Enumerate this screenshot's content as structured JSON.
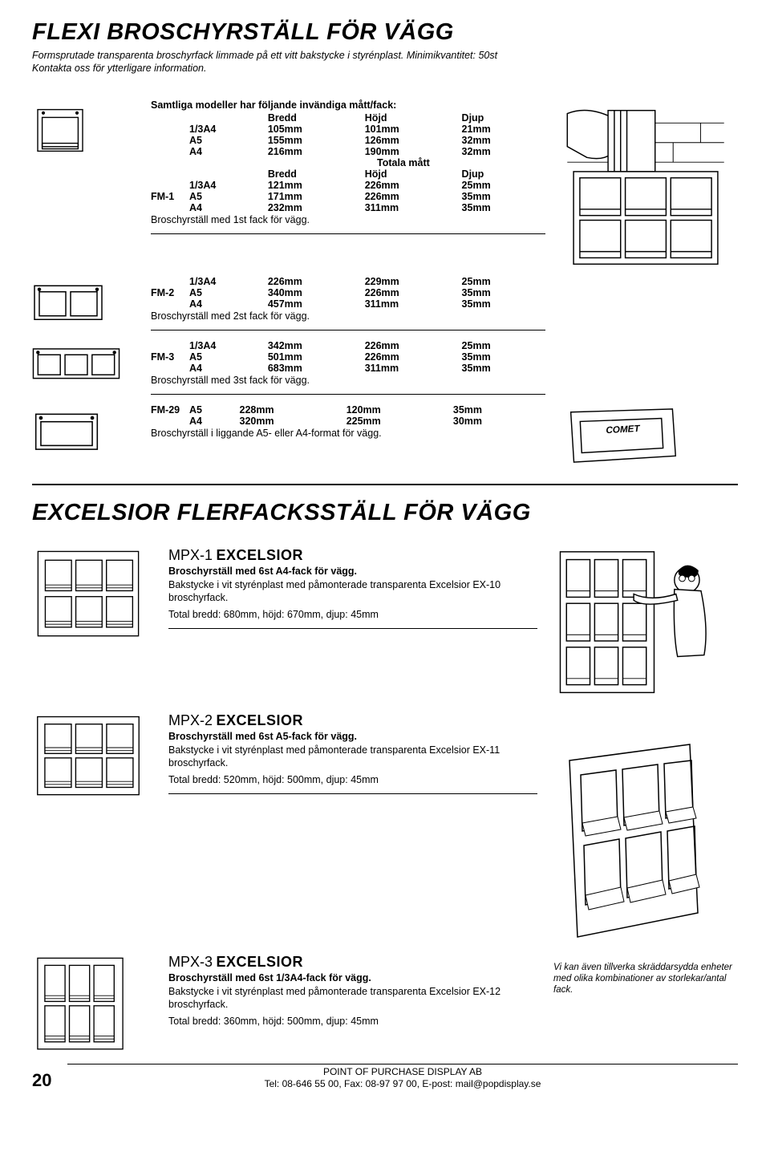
{
  "title": "FLEXI BROSCHYRSTÄLL FÖR VÄGG",
  "intro": "Formsprutade transparenta broschyrfack limmade på ett vitt bakstycke i styrénplast. Minimikvantitet: 50st\nKontakta oss för ytterligare information.",
  "specHeader": "Samtliga modeller har följande invändiga mått/fack:",
  "colBredd": "Bredd",
  "colHojd": "Höjd",
  "colDjup": "Djup",
  "totalaMatt": "Totala mått",
  "inner": {
    "r1": {
      "a": "1/3A4",
      "b": "105mm",
      "c": "101mm",
      "d": "21mm"
    },
    "r2": {
      "a": "A5",
      "b": "155mm",
      "c": "126mm",
      "d": "32mm"
    },
    "r3": {
      "a": "A4",
      "b": "216mm",
      "c": "190mm",
      "d": "32mm"
    }
  },
  "fm1": {
    "code": "FM-1",
    "r1": {
      "a": "1/3A4",
      "b": "121mm",
      "c": "226mm",
      "d": "25mm"
    },
    "r2": {
      "a": "A5",
      "b": "171mm",
      "c": "226mm",
      "d": "35mm"
    },
    "r3": {
      "a": "A4",
      "b": "232mm",
      "c": "311mm",
      "d": "35mm"
    },
    "caption": "Broschyrställ med 1st fack för vägg."
  },
  "fm2": {
    "code": "FM-2",
    "r1": {
      "a": "1/3A4",
      "b": "226mm",
      "c": "229mm",
      "d": "25mm"
    },
    "r2": {
      "a": "A5",
      "b": "340mm",
      "c": "226mm",
      "d": "35mm"
    },
    "r3": {
      "a": "A4",
      "b": "457mm",
      "c": "311mm",
      "d": "35mm"
    },
    "caption": "Broschyrställ med 2st fack för vägg."
  },
  "fm3": {
    "code": "FM-3",
    "r1": {
      "a": "1/3A4",
      "b": "342mm",
      "c": "226mm",
      "d": "25mm"
    },
    "r2": {
      "a": "A5",
      "b": "501mm",
      "c": "226mm",
      "d": "35mm"
    },
    "r3": {
      "a": "A4",
      "b": "683mm",
      "c": "311mm",
      "d": "35mm"
    },
    "caption": "Broschyrställ med 3st fack för vägg."
  },
  "fm29": {
    "code": "FM-29",
    "r1": {
      "a": "A5",
      "b": "228mm",
      "c": "120mm",
      "d": "35mm"
    },
    "r2": {
      "a": "A4",
      "b": "320mm",
      "c": "225mm",
      "d": "30mm"
    },
    "caption": "Broschyrställ i liggande A5- eller A4-format för vägg."
  },
  "title2": "EXCELSIOR FLERFACKSSTÄLL FÖR VÄGG",
  "brand": "EXCELSIOR",
  "mpx1": {
    "code": "MPX-1",
    "sub": "Broschyrställ med 6st A4-fack för vägg.",
    "desc": "Bakstycke i vit styrénplast med påmonterade transparenta Excelsior EX-10 broschyrfack.",
    "dims": "Total bredd: 680mm, höjd: 670mm, djup: 45mm"
  },
  "mpx2": {
    "code": "MPX-2",
    "sub": "Broschyrställ med 6st A5-fack för vägg.",
    "desc": "Bakstycke i vit styrénplast med påmonterade transparenta Excelsior EX-11 broschyrfack.",
    "dims": "Total bredd: 520mm, höjd: 500mm, djup: 45mm"
  },
  "mpx3": {
    "code": "MPX-3",
    "sub": "Broschyrställ med 6st 1/3A4-fack för vägg.",
    "desc": "Bakstycke i vit styrénplast med påmonterade transparenta Excelsior EX-12 broschyrfack.",
    "dims": "Total bredd: 360mm, höjd: 500mm, djup: 45mm"
  },
  "footnote": "Vi kan även tillverka skräddarsydda enheter med olika kombinationer av storlekar/antal fack.",
  "page": "20",
  "company": "POINT OF PURCHASE DISPLAY AB",
  "contact": "Tel: 08-646 55 00, Fax: 08-97 97 00, E-post: mail@popdisplay.se",
  "cometLabel": "COMET"
}
